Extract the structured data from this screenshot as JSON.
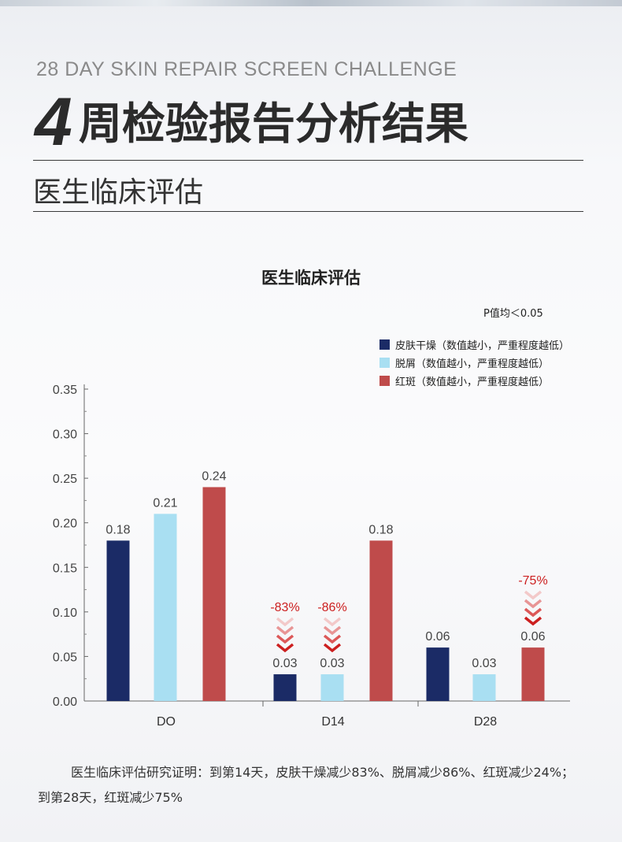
{
  "header": {
    "subtitle_en": "28 DAY SKIN REPAIR SCREEN CHALLENGE",
    "title_number": "4",
    "title_text": "周检验报告分析结果",
    "section_title": "医生临床评估"
  },
  "chart_data": {
    "type": "bar",
    "title": "医生临床评估",
    "note": "P值均＜0.05",
    "categories": [
      "DO",
      "D14",
      "D28"
    ],
    "series": [
      {
        "name": "皮肤干燥（数值越小，严重程度越低）",
        "color": "#1b2b66",
        "values": [
          0.18,
          0.03,
          0.06
        ],
        "labels": [
          "0.18",
          "0.03",
          "0.06"
        ]
      },
      {
        "name": "脱屑（数值越小，严重程度越低）",
        "color": "#a9dff2",
        "values": [
          0.21,
          0.03,
          0.03
        ],
        "labels": [
          "0.21",
          "0.03",
          "0.03"
        ]
      },
      {
        "name": "红斑（数值越小，严重程度越低）",
        "color": "#bf4b4b",
        "values": [
          0.24,
          0.18,
          0.06
        ],
        "labels": [
          "0.24",
          "0.18",
          "0.06"
        ]
      }
    ],
    "annotations": [
      {
        "category": "D14",
        "series": 0,
        "text": "-83%"
      },
      {
        "category": "D14",
        "series": 1,
        "text": "-86%"
      },
      {
        "category": "D28",
        "series": 2,
        "text": "-75%"
      }
    ],
    "ylim": [
      0,
      0.35
    ],
    "yticks": [
      "0.00",
      "0.05",
      "0.10",
      "0.15",
      "0.20",
      "0.25",
      "0.30",
      "0.35"
    ],
    "annotation_color": "#cc1f1f",
    "legend_position": "top-right",
    "grid": false
  },
  "footer": {
    "note": "医生临床评估研究证明：到第14天，皮肤干燥减少83%、脱屑减少86%、红斑减少24%；到第28天，红斑减少75%"
  }
}
